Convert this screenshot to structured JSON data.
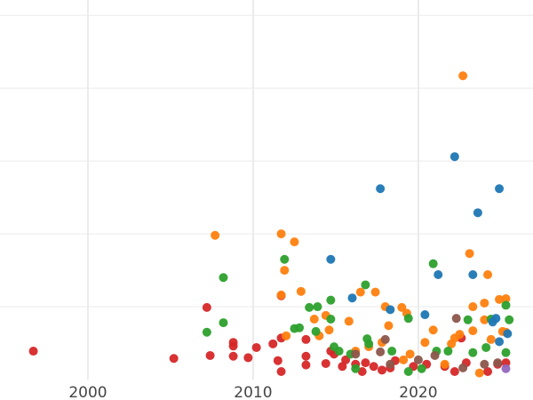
{
  "chart_data": {
    "type": "scatter",
    "title": "",
    "xlabel": "",
    "ylabel": "",
    "xlim": [
      1994.68,
      2026.94
    ],
    "ylim": [
      0,
      5.21
    ],
    "grid": true,
    "x_ticks": [
      2000,
      2010,
      2020
    ],
    "x_tick_labels": [
      "2000",
      "2010",
      "2020"
    ],
    "y_gridlines": [
      1,
      2,
      3,
      4,
      5
    ],
    "legend": "none",
    "series": [
      {
        "color": "#d62728",
        "points": [
          [
            1996.7,
            0.39
          ],
          [
            2005.2,
            0.29
          ],
          [
            2007.4,
            0.33
          ],
          [
            2007.2,
            0.99
          ],
          [
            2008.8,
            0.51
          ],
          [
            2008.8,
            0.46
          ],
          [
            2008.8,
            0.32
          ],
          [
            2009.7,
            0.3
          ],
          [
            2010.2,
            0.44
          ],
          [
            2011.2,
            0.49
          ],
          [
            2011.5,
            0.26
          ],
          [
            2011.7,
            0.11
          ],
          [
            2011.7,
            1.15
          ],
          [
            2011.7,
            0.57
          ],
          [
            2013.2,
            0.55
          ],
          [
            2013.2,
            0.32
          ],
          [
            2013.2,
            0.2
          ],
          [
            2014.4,
            0.22
          ],
          [
            2014.7,
            0.39
          ],
          [
            2014.9,
            0.35
          ],
          [
            2015.4,
            0.18
          ],
          [
            2015.6,
            0.27
          ],
          [
            2016.2,
            0.21
          ],
          [
            2016.6,
            0.11
          ],
          [
            2016.8,
            0.23
          ],
          [
            2017.3,
            0.18
          ],
          [
            2017.8,
            0.13
          ],
          [
            2018.3,
            0.16
          ],
          [
            2018.6,
            0.26
          ],
          [
            2019.7,
            0.18
          ],
          [
            2020.5,
            0.21
          ],
          [
            2021.6,
            0.18
          ],
          [
            2022.2,
            0.11
          ],
          [
            2022.6,
            0.57
          ],
          [
            2022.9,
            0.23
          ],
          [
            2024.2,
            0.11
          ],
          [
            2024.8,
            0.21
          ],
          [
            2025.3,
            0.23
          ]
        ]
      },
      {
        "color": "#ff7f0e",
        "points": [
          [
            2007.7,
            1.98
          ],
          [
            2011.7,
            2.0
          ],
          [
            2012.5,
            1.89
          ],
          [
            2011.9,
            1.5
          ],
          [
            2011.7,
            1.16
          ],
          [
            2012.9,
            1.21
          ],
          [
            2013.7,
            0.83
          ],
          [
            2014.0,
            0.6
          ],
          [
            2012.0,
            0.6
          ],
          [
            2014.4,
            0.88
          ],
          [
            2014.6,
            0.68
          ],
          [
            2015.8,
            0.8
          ],
          [
            2016.5,
            1.2
          ],
          [
            2017.4,
            1.2
          ],
          [
            2018.0,
            1.0
          ],
          [
            2018.2,
            0.74
          ],
          [
            2019.0,
            0.99
          ],
          [
            2019.3,
            0.91
          ],
          [
            2016.2,
            0.39
          ],
          [
            2017.0,
            0.45
          ],
          [
            2017.8,
            0.51
          ],
          [
            2019.1,
            0.27
          ],
          [
            2019.5,
            0.35
          ],
          [
            2020.4,
            0.51
          ],
          [
            2020.9,
            0.68
          ],
          [
            2022.0,
            0.49
          ],
          [
            2022.2,
            0.57
          ],
          [
            2022.5,
            0.62
          ],
          [
            2022.7,
            4.17
          ],
          [
            2023.1,
            1.73
          ],
          [
            2023.3,
            0.67
          ],
          [
            2023.3,
            1.0
          ],
          [
            2024.0,
            1.05
          ],
          [
            2024.2,
            1.44
          ],
          [
            2024.4,
            0.55
          ],
          [
            2023.7,
            0.09
          ],
          [
            2024.9,
            1.1
          ],
          [
            2025.3,
            1.11
          ],
          [
            2025.1,
            0.66
          ],
          [
            2025.3,
            0.65
          ],
          [
            2024.0,
            0.82
          ],
          [
            2021.6,
            0.21
          ]
        ]
      },
      {
        "color": "#2ca02c",
        "points": [
          [
            2008.2,
            1.4
          ],
          [
            2007.2,
            0.65
          ],
          [
            2008.2,
            0.78
          ],
          [
            2011.9,
            1.65
          ],
          [
            2012.5,
            0.7
          ],
          [
            2012.8,
            0.71
          ],
          [
            2013.4,
            0.99
          ],
          [
            2013.9,
            1.0
          ],
          [
            2013.8,
            0.66
          ],
          [
            2014.7,
            1.09
          ],
          [
            2014.7,
            0.83
          ],
          [
            2014.9,
            0.45
          ],
          [
            2015.2,
            0.39
          ],
          [
            2015.9,
            0.35
          ],
          [
            2016.8,
            1.3
          ],
          [
            2016.9,
            0.56
          ],
          [
            2017.0,
            0.49
          ],
          [
            2018.4,
            0.39
          ],
          [
            2019.4,
            0.84
          ],
          [
            2020.9,
            1.59
          ],
          [
            2021.1,
            0.39
          ],
          [
            2021.8,
            0.39
          ],
          [
            2023.0,
            0.82
          ],
          [
            2023.3,
            0.37
          ],
          [
            2024.1,
            0.44
          ],
          [
            2024.4,
            0.83
          ],
          [
            2025.3,
            1.02
          ],
          [
            2025.5,
            0.82
          ],
          [
            2025.3,
            0.37
          ],
          [
            2019.4,
            0.11
          ],
          [
            2020.2,
            0.15
          ],
          [
            2016.2,
            0.15
          ]
        ]
      },
      {
        "color": "#1f77b4",
        "points": [
          [
            2014.7,
            1.65
          ],
          [
            2016.0,
            1.12
          ],
          [
            2017.7,
            2.62
          ],
          [
            2018.3,
            0.96
          ],
          [
            2020.4,
            0.89
          ],
          [
            2021.2,
            1.44
          ],
          [
            2022.2,
            3.06
          ],
          [
            2023.6,
            2.29
          ],
          [
            2023.3,
            1.44
          ],
          [
            2024.9,
            2.62
          ],
          [
            2024.7,
            0.84
          ],
          [
            2024.5,
            0.79
          ],
          [
            2024.9,
            0.52
          ],
          [
            2025.4,
            0.63
          ]
        ]
      },
      {
        "color": "#8c564b",
        "points": [
          [
            2018.0,
            0.55
          ],
          [
            2022.3,
            0.84
          ],
          [
            2016.2,
            0.35
          ],
          [
            2017.7,
            0.38
          ],
          [
            2020.0,
            0.27
          ],
          [
            2021.0,
            0.33
          ],
          [
            2022.7,
            0.16
          ],
          [
            2024.0,
            0.21
          ],
          [
            2024.8,
            0.23
          ],
          [
            2018.3,
            0.21
          ]
        ]
      },
      {
        "color": "#9467bd",
        "points": [
          [
            2025.3,
            0.15
          ]
        ]
      }
    ]
  }
}
